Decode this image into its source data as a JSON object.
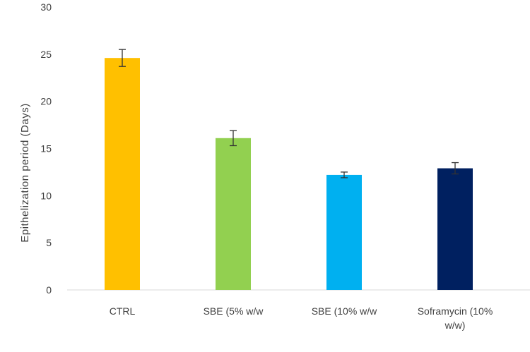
{
  "chart_data": {
    "type": "bar",
    "title": "",
    "xlabel": "",
    "ylabel": "Epithelization period (Days)",
    "ylim": [
      0,
      30
    ],
    "yticks": [
      0,
      5,
      10,
      15,
      20,
      25,
      30
    ],
    "categories": [
      "CTRL",
      "SBE (5% w/w)",
      "SBE (10% w/w)",
      "Soframycin (10% w/w)"
    ],
    "category_lines": [
      [
        "CTRL"
      ],
      [
        "SBE (5% w/w"
      ],
      [
        "SBE (10% w/w"
      ],
      [
        "Soframycin (10%",
        "w/w)"
      ]
    ],
    "values": [
      24.6,
      16.1,
      12.2,
      12.9
    ],
    "errors": [
      0.9,
      0.8,
      0.3,
      0.6
    ],
    "colors": [
      "#FFC000",
      "#92D050",
      "#00B0F0",
      "#002060"
    ],
    "grid": false,
    "legend": "none"
  }
}
